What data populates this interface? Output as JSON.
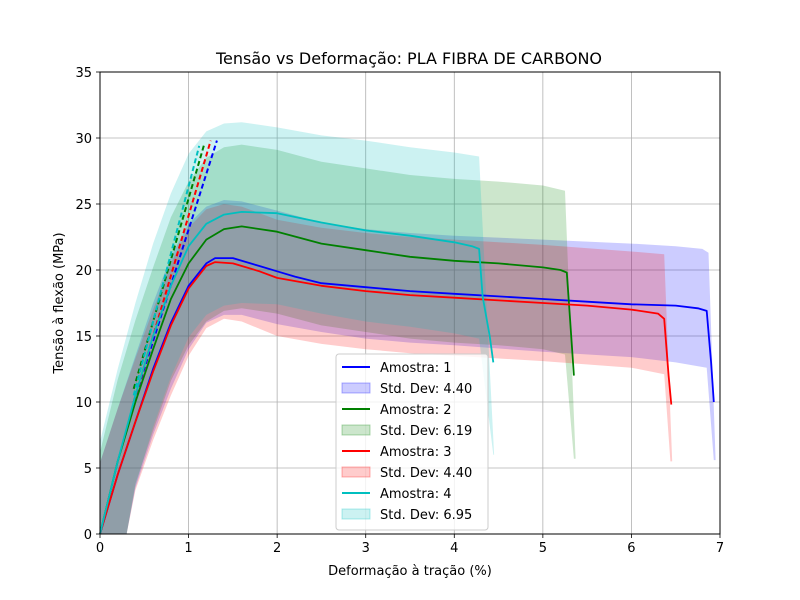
{
  "chart_data": {
    "type": "line",
    "title": "Tensão vs Deformação: PLA FIBRA DE CARBONO",
    "xlabel": "Deformação à tração (%)",
    "ylabel": "Tensão à flexão (MPa)",
    "xlim": [
      0,
      7
    ],
    "ylim": [
      0,
      35
    ],
    "xticks": [
      0,
      1,
      2,
      3,
      4,
      5,
      6,
      7
    ],
    "yticks": [
      0,
      5,
      10,
      15,
      20,
      25,
      30,
      35
    ],
    "grid": true,
    "legend_position": "lower-center",
    "series": [
      {
        "name": "Amostra: 1",
        "std_label": "Std. Dev: 4.40",
        "color": "#0000ff",
        "points": [
          [
            0,
            0
          ],
          [
            0.2,
            4.5
          ],
          [
            0.4,
            8.5
          ],
          [
            0.6,
            12.5
          ],
          [
            0.8,
            16
          ],
          [
            1.0,
            18.8
          ],
          [
            1.2,
            20.5
          ],
          [
            1.3,
            20.9
          ],
          [
            1.5,
            20.9
          ],
          [
            1.8,
            20.3
          ],
          [
            2.0,
            19.9
          ],
          [
            2.2,
            19.5
          ],
          [
            2.5,
            19.0
          ],
          [
            3.0,
            18.7
          ],
          [
            3.5,
            18.4
          ],
          [
            4.0,
            18.2
          ],
          [
            4.5,
            18.0
          ],
          [
            5.0,
            17.8
          ],
          [
            5.5,
            17.6
          ],
          [
            6.0,
            17.4
          ],
          [
            6.5,
            17.3
          ],
          [
            6.75,
            17.1
          ],
          [
            6.85,
            16.9
          ],
          [
            6.9,
            13.0
          ],
          [
            6.93,
            10.0
          ]
        ],
        "tangent": [
          [
            0.38,
            10.0
          ],
          [
            1.32,
            29.8
          ]
        ],
        "band_upper": [
          [
            0,
            5.4
          ],
          [
            0.2,
            9.5
          ],
          [
            0.4,
            13.5
          ],
          [
            0.6,
            17.5
          ],
          [
            0.8,
            21
          ],
          [
            1.0,
            23.5
          ],
          [
            1.2,
            24.8
          ],
          [
            1.4,
            25.3
          ],
          [
            1.6,
            25.2
          ],
          [
            2.0,
            24.5
          ],
          [
            2.5,
            23.6
          ],
          [
            3.0,
            23.1
          ],
          [
            3.5,
            22.8
          ],
          [
            4.0,
            22.6
          ],
          [
            5.0,
            22.3
          ],
          [
            6.0,
            22.0
          ],
          [
            6.5,
            21.8
          ],
          [
            6.8,
            21.6
          ],
          [
            6.87,
            21.3
          ],
          [
            6.95,
            5.6
          ]
        ],
        "band_lower": [
          [
            0,
            0
          ],
          [
            0.2,
            0
          ],
          [
            0.3,
            0
          ],
          [
            0.4,
            3.5
          ],
          [
            0.6,
            7.5
          ],
          [
            0.8,
            11
          ],
          [
            1.0,
            14.0
          ],
          [
            1.2,
            16.0
          ],
          [
            1.4,
            16.6
          ],
          [
            1.6,
            16.6
          ],
          [
            2.0,
            15.9
          ],
          [
            2.5,
            15.3
          ],
          [
            3.0,
            14.8
          ],
          [
            3.5,
            14.5
          ],
          [
            4.0,
            14.3
          ],
          [
            5.0,
            13.8
          ],
          [
            6.0,
            13.4
          ],
          [
            6.5,
            13.0
          ],
          [
            6.85,
            12.6
          ],
          [
            6.93,
            5.6
          ]
        ]
      },
      {
        "name": "Amostra: 2",
        "std_label": "Std. Dev: 6.19",
        "color": "#008000",
        "points": [
          [
            0,
            0
          ],
          [
            0.2,
            5.5
          ],
          [
            0.4,
            10
          ],
          [
            0.6,
            14
          ],
          [
            0.8,
            17.8
          ],
          [
            1.0,
            20.5
          ],
          [
            1.2,
            22.3
          ],
          [
            1.4,
            23.1
          ],
          [
            1.6,
            23.3
          ],
          [
            2.0,
            22.9
          ],
          [
            2.5,
            22.0
          ],
          [
            3.0,
            21.5
          ],
          [
            3.5,
            21.0
          ],
          [
            4.0,
            20.7
          ],
          [
            4.5,
            20.5
          ],
          [
            5.0,
            20.2
          ],
          [
            5.2,
            20.0
          ],
          [
            5.27,
            19.8
          ],
          [
            5.3,
            17.0
          ],
          [
            5.35,
            12.0
          ]
        ],
        "tangent": [
          [
            0.38,
            11.0
          ],
          [
            1.18,
            29.6
          ]
        ],
        "band_upper": [
          [
            0,
            6.2
          ],
          [
            0.2,
            11.7
          ],
          [
            0.4,
            16.2
          ],
          [
            0.6,
            20.2
          ],
          [
            0.8,
            24.0
          ],
          [
            1.0,
            26.7
          ],
          [
            1.2,
            28.5
          ],
          [
            1.4,
            29.3
          ],
          [
            1.6,
            29.5
          ],
          [
            2.0,
            29.1
          ],
          [
            2.5,
            28.2
          ],
          [
            3.0,
            27.7
          ],
          [
            3.5,
            27.2
          ],
          [
            4.0,
            26.9
          ],
          [
            4.5,
            26.7
          ],
          [
            5.0,
            26.4
          ],
          [
            5.25,
            26.0
          ],
          [
            5.37,
            5.7
          ]
        ],
        "band_lower": [
          [
            0,
            0
          ],
          [
            0.2,
            0
          ],
          [
            0.3,
            0
          ],
          [
            0.4,
            3.8
          ],
          [
            0.6,
            7.8
          ],
          [
            0.8,
            11.6
          ],
          [
            1.0,
            14.3
          ],
          [
            1.2,
            16.1
          ],
          [
            1.4,
            16.9
          ],
          [
            1.6,
            17.1
          ],
          [
            2.0,
            16.7
          ],
          [
            2.5,
            15.8
          ],
          [
            3.0,
            15.3
          ],
          [
            3.5,
            14.8
          ],
          [
            4.0,
            14.5
          ],
          [
            4.5,
            14.3
          ],
          [
            5.0,
            14.0
          ],
          [
            5.25,
            13.6
          ],
          [
            5.35,
            5.7
          ]
        ]
      },
      {
        "name": "Amostra: 3",
        "std_label": "Std. Dev: 4.40",
        "color": "#ff0000",
        "points": [
          [
            0,
            0
          ],
          [
            0.2,
            4.5
          ],
          [
            0.4,
            8.5
          ],
          [
            0.6,
            12.3
          ],
          [
            0.8,
            15.8
          ],
          [
            1.0,
            18.6
          ],
          [
            1.2,
            20.3
          ],
          [
            1.3,
            20.6
          ],
          [
            1.5,
            20.5
          ],
          [
            1.8,
            19.9
          ],
          [
            2.0,
            19.4
          ],
          [
            2.5,
            18.8
          ],
          [
            3.0,
            18.4
          ],
          [
            3.5,
            18.1
          ],
          [
            4.0,
            17.9
          ],
          [
            4.5,
            17.7
          ],
          [
            5.0,
            17.5
          ],
          [
            5.5,
            17.3
          ],
          [
            6.0,
            17.0
          ],
          [
            6.3,
            16.7
          ],
          [
            6.37,
            16.3
          ],
          [
            6.42,
            12.0
          ],
          [
            6.45,
            9.8
          ]
        ],
        "tangent": [
          [
            0.38,
            10.0
          ],
          [
            1.25,
            29.8
          ]
        ],
        "band_upper": [
          [
            0,
            5.4
          ],
          [
            0.2,
            9.5
          ],
          [
            0.4,
            13.3
          ],
          [
            0.6,
            17.0
          ],
          [
            0.8,
            20.5
          ],
          [
            1.0,
            23.2
          ],
          [
            1.2,
            24.6
          ],
          [
            1.4,
            25.0
          ],
          [
            1.6,
            24.8
          ],
          [
            2.0,
            23.8
          ],
          [
            2.5,
            23.2
          ],
          [
            3.0,
            22.8
          ],
          [
            3.5,
            22.5
          ],
          [
            4.0,
            22.3
          ],
          [
            5.0,
            21.9
          ],
          [
            6.0,
            21.4
          ],
          [
            6.37,
            21.2
          ],
          [
            6.46,
            5.5
          ]
        ],
        "band_lower": [
          [
            0,
            0
          ],
          [
            0.2,
            0
          ],
          [
            0.3,
            0
          ],
          [
            0.4,
            3.3
          ],
          [
            0.6,
            7.1
          ],
          [
            0.8,
            10.5
          ],
          [
            1.0,
            13.5
          ],
          [
            1.2,
            15.6
          ],
          [
            1.4,
            16.3
          ],
          [
            1.6,
            16.1
          ],
          [
            2.0,
            15.0
          ],
          [
            2.5,
            14.4
          ],
          [
            3.0,
            14.0
          ],
          [
            3.5,
            13.7
          ],
          [
            4.0,
            13.5
          ],
          [
            5.0,
            13.1
          ],
          [
            6.0,
            12.6
          ],
          [
            6.37,
            12.1
          ],
          [
            6.44,
            5.5
          ]
        ]
      },
      {
        "name": "Amostra: 4",
        "std_label": "Std. Dev: 6.95",
        "color": "#00bfbf",
        "points": [
          [
            0,
            0
          ],
          [
            0.2,
            5.5
          ],
          [
            0.4,
            10.5
          ],
          [
            0.6,
            15
          ],
          [
            0.8,
            18.8
          ],
          [
            1.0,
            21.8
          ],
          [
            1.2,
            23.5
          ],
          [
            1.4,
            24.2
          ],
          [
            1.6,
            24.4
          ],
          [
            2.0,
            24.3
          ],
          [
            2.5,
            23.6
          ],
          [
            3.0,
            23.0
          ],
          [
            3.5,
            22.6
          ],
          [
            4.0,
            22.1
          ],
          [
            4.2,
            21.8
          ],
          [
            4.28,
            21.6
          ],
          [
            4.32,
            18.0
          ],
          [
            4.4,
            15.0
          ],
          [
            4.44,
            13.0
          ]
        ],
        "tangent": [
          [
            0.38,
            10.5
          ],
          [
            1.12,
            29.4
          ]
        ],
        "band_upper": [
          [
            0,
            7.0
          ],
          [
            0.2,
            12.5
          ],
          [
            0.4,
            17.5
          ],
          [
            0.6,
            22
          ],
          [
            0.8,
            25.8
          ],
          [
            1.0,
            28.8
          ],
          [
            1.2,
            30.5
          ],
          [
            1.4,
            31.1
          ],
          [
            1.6,
            31.2
          ],
          [
            2.0,
            30.8
          ],
          [
            2.5,
            30.2
          ],
          [
            3.0,
            29.8
          ],
          [
            3.5,
            29.3
          ],
          [
            4.0,
            28.9
          ],
          [
            4.28,
            28.6
          ],
          [
            4.45,
            6.0
          ]
        ],
        "band_lower": [
          [
            0,
            0
          ],
          [
            0.2,
            0
          ],
          [
            0.3,
            0
          ],
          [
            0.4,
            3.6
          ],
          [
            0.6,
            8.1
          ],
          [
            0.8,
            11.9
          ],
          [
            1.0,
            14.9
          ],
          [
            1.2,
            16.6
          ],
          [
            1.4,
            17.3
          ],
          [
            1.6,
            17.5
          ],
          [
            2.0,
            17.4
          ],
          [
            2.5,
            16.7
          ],
          [
            3.0,
            16.1
          ],
          [
            3.5,
            15.7
          ],
          [
            4.0,
            15.2
          ],
          [
            4.28,
            14.8
          ],
          [
            4.44,
            6.0
          ]
        ]
      }
    ]
  },
  "colors": {
    "amostra_1": "#0000ff",
    "amostra_2": "#008000",
    "amostra_3": "#ff0000",
    "amostra_4": "#00bfbf"
  }
}
